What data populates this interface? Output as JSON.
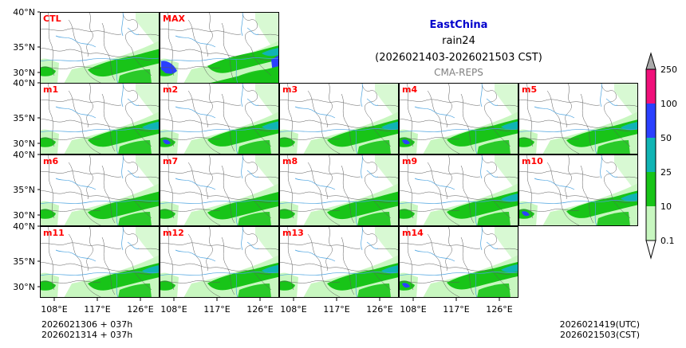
{
  "header": {
    "region": "EastChina",
    "variable": "rain24",
    "period": "(2026021403-2026021503 CST)",
    "source": "CMA-REPS"
  },
  "colors": {
    "region_title": "#0000cc",
    "panel_label": "#ff0000",
    "source_text": "#808080",
    "coast": "#5a5a5a",
    "river": "#4aa3e0"
  },
  "colorbar": {
    "levels": [
      "0.1",
      "10",
      "25",
      "50",
      "100",
      "250"
    ],
    "colors": [
      "#c8f7c0",
      "#18c418",
      "#10b4b4",
      "#2a40ff",
      "#f0107a"
    ],
    "under_color": "#ffffff",
    "over_color": "#a9a9a9"
  },
  "panels": [
    {
      "label": "CTL",
      "intensity": 0.45
    },
    {
      "label": "MAX",
      "intensity": 1.0
    },
    {
      "label": "m1",
      "intensity": 0.55
    },
    {
      "label": "m2",
      "intensity": 0.6
    },
    {
      "label": "m3",
      "intensity": 0.55
    },
    {
      "label": "m4",
      "intensity": 0.6
    },
    {
      "label": "m5",
      "intensity": 0.5
    },
    {
      "label": "m6",
      "intensity": 0.45
    },
    {
      "label": "m7",
      "intensity": 0.4
    },
    {
      "label": "m8",
      "intensity": 0.45
    },
    {
      "label": "m9",
      "intensity": 0.5
    },
    {
      "label": "m10",
      "intensity": 0.6
    },
    {
      "label": "m11",
      "intensity": 0.5
    },
    {
      "label": "m12",
      "intensity": 0.55
    },
    {
      "label": "m13",
      "intensity": 0.5
    },
    {
      "label": "m14",
      "intensity": 0.65
    }
  ],
  "axes": {
    "lat_ticks": [
      "40°N",
      "35°N",
      "30°N"
    ],
    "lon_ticks": [
      "108°E",
      "117°E",
      "126°E"
    ]
  },
  "footer": {
    "init_line1": "2026021306  +  037h",
    "init_line2": "2026021314  +  037h",
    "valid_utc": "2026021419(UTC)",
    "valid_cst": "2026021503(CST)"
  }
}
